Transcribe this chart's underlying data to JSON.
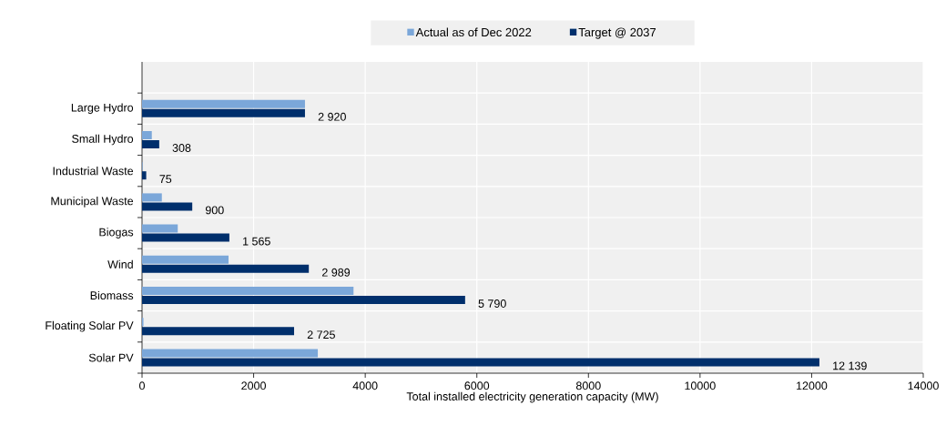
{
  "chart_data": {
    "type": "bar",
    "orientation": "horizontal",
    "xlabel": "Total installed electricity generation capacity (MW)",
    "categories": [
      "Large Hydro",
      "Small Hydro",
      "Industrial Waste",
      "Municipal Waste",
      "Biogas",
      "Wind",
      "Biomass",
      "Floating Solar PV",
      "Solar PV"
    ],
    "series": [
      {
        "name": "Actual as of Dec 2022",
        "color": "#7ba7d9",
        "values": [
          2920,
          175,
          10,
          355,
          640,
          1550,
          3790,
          25,
          3150
        ]
      },
      {
        "name": "Target @ 2037",
        "color": "#002f6c",
        "values": [
          2920,
          308,
          75,
          900,
          1565,
          2989,
          5790,
          2725,
          12139
        ],
        "value_labels": [
          "2 920",
          "308",
          "75",
          "900",
          "1 565",
          "2 989",
          "5 790",
          "2 725",
          "12 139"
        ]
      }
    ],
    "xlim": [
      0,
      14000
    ],
    "xticks": [
      0,
      2000,
      4000,
      6000,
      8000,
      10000,
      12000,
      14000
    ],
    "grid": true,
    "legend": "top"
  }
}
